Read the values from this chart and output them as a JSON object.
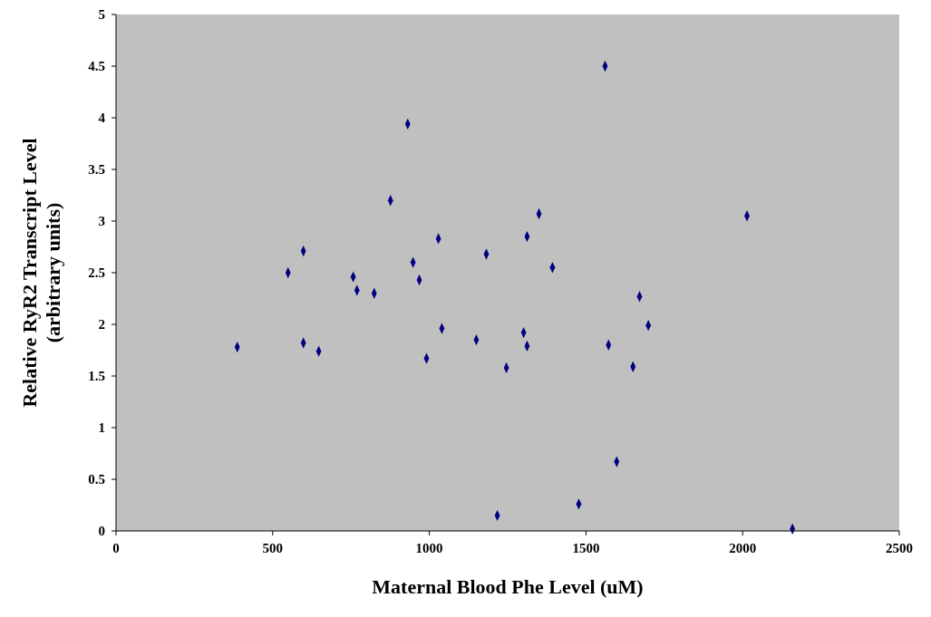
{
  "chart_data": {
    "type": "scatter",
    "xlabel": "Maternal Blood Phe Level (uM)",
    "ylabel": "Relative RyR2 Transcript Level\n(arbitrary units)",
    "xlim": [
      0,
      2500
    ],
    "xticks": [
      0,
      500,
      1000,
      1500,
      2000,
      2500
    ],
    "ylim": [
      0,
      5
    ],
    "yticks": [
      0,
      0.5,
      1,
      1.5,
      2,
      2.5,
      3,
      3.5,
      4,
      4.5,
      5
    ],
    "grid": false,
    "marker": "diamond",
    "series": [
      {
        "color": "#000080",
        "x": [
          387,
          549,
          598,
          598,
          647,
          757,
          769,
          824,
          876,
          931,
          948,
          968,
          991,
          1029,
          1040,
          1150,
          1182,
          1217,
          1246,
          1301,
          1312,
          1312,
          1350,
          1393,
          1477,
          1561,
          1572,
          1598,
          1650,
          1671,
          1699,
          2014,
          2159
        ],
        "values": [
          1.78,
          2.5,
          2.71,
          1.82,
          1.74,
          2.46,
          2.33,
          2.3,
          3.2,
          3.94,
          2.6,
          2.43,
          1.67,
          2.83,
          1.96,
          1.85,
          2.68,
          0.15,
          1.58,
          1.92,
          2.85,
          1.79,
          3.07,
          2.55,
          0.26,
          4.5,
          1.8,
          0.67,
          1.59,
          2.27,
          1.99,
          3.05,
          0.02
        ]
      }
    ]
  }
}
